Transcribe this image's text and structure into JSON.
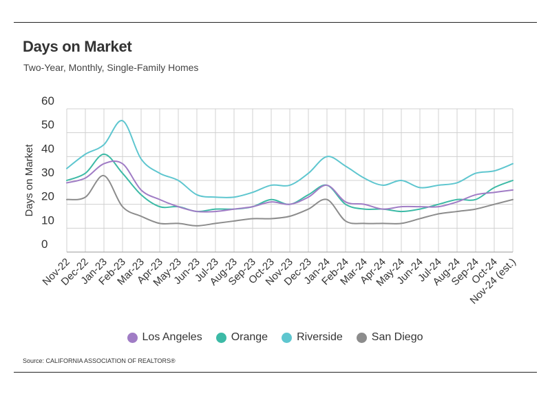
{
  "header": {
    "title": "Days on Market",
    "subtitle": "Two-Year, Monthly, Single-Family Homes"
  },
  "source": "Source:  CALIFORNIA ASSOCIATION OF REALTORS®",
  "chart_data": {
    "type": "line",
    "title": "Days on Market",
    "subtitle": "Two-Year, Monthly, Single-Family Homes",
    "xlabel": "",
    "ylabel": "Days on Market",
    "ylim": [
      0,
      60
    ],
    "yticks": [
      0,
      10,
      20,
      30,
      40,
      50,
      60
    ],
    "grid": true,
    "legend_position": "bottom",
    "categories": [
      "Nov-22",
      "Dec-22",
      "Jan-23",
      "Feb-23",
      "Mar-23",
      "Apr-23",
      "May-23",
      "Jun-23",
      "Jul-23",
      "Aug-23",
      "Sep-23",
      "Oct-23",
      "Nov-23",
      "Dec-23",
      "Jan-24",
      "Feb-24",
      "Mar-24",
      "Apr-24",
      "May-24",
      "Jun-24",
      "Jul-24",
      "Aug-24",
      "Sep-24",
      "Oct-24",
      "Nov-24 (est.)"
    ],
    "series": [
      {
        "name": "Los Angeles",
        "color": "#a07cc5",
        "values": [
          29,
          31,
          37,
          37,
          26,
          22,
          19,
          17,
          17,
          18,
          19,
          21,
          20,
          23,
          28,
          21,
          20,
          18,
          19,
          19,
          19,
          21,
          24,
          25,
          26
        ]
      },
      {
        "name": "Orange",
        "color": "#3cbaa6",
        "values": [
          30,
          33,
          41,
          33,
          24,
          19,
          19,
          17,
          18,
          18,
          19,
          22,
          20,
          24,
          28,
          20,
          18,
          18,
          17,
          18,
          20,
          22,
          22,
          27,
          30
        ]
      },
      {
        "name": "Riverside",
        "color": "#5ec6cf",
        "values": [
          35,
          41,
          45,
          55,
          39,
          33,
          30,
          24,
          23,
          23,
          25,
          28,
          28,
          33,
          40,
          36,
          31,
          28,
          30,
          27,
          28,
          29,
          33,
          34,
          37
        ]
      },
      {
        "name": "San Diego",
        "color": "#8c8c8c",
        "values": [
          22,
          23,
          32,
          19,
          15,
          12,
          12,
          11,
          12,
          13,
          14,
          14,
          15,
          18,
          22,
          13,
          12,
          12,
          12,
          14,
          16,
          17,
          18,
          20,
          22
        ]
      }
    ]
  }
}
